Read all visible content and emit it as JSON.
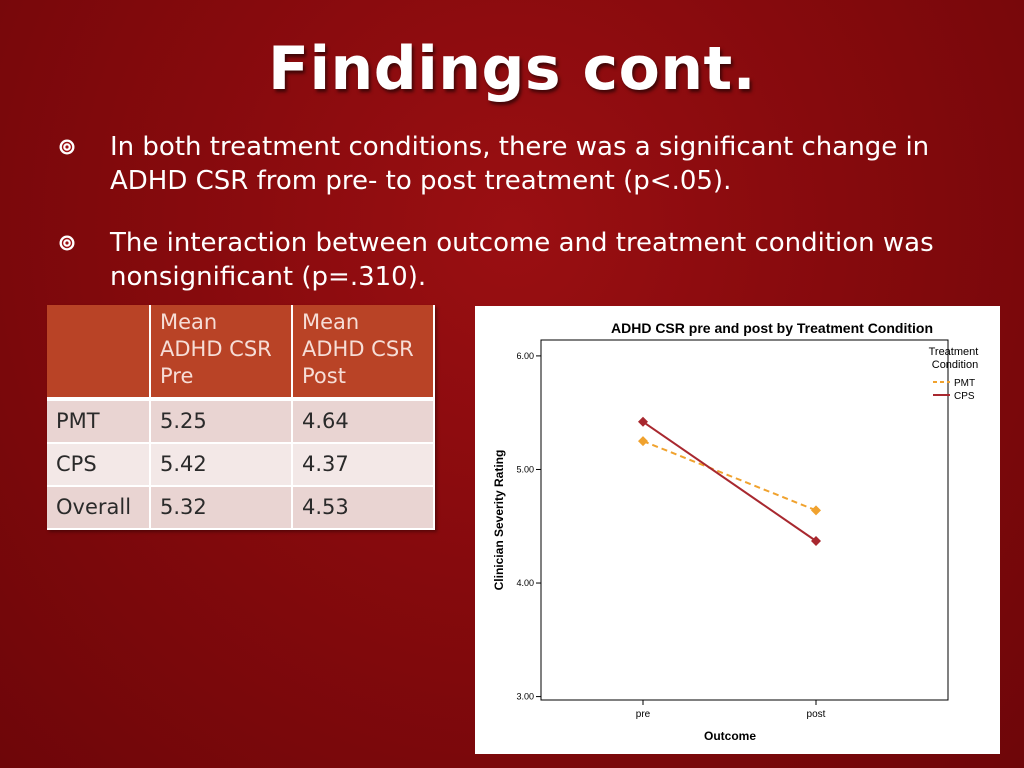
{
  "slide": {
    "title": "Findings cont.",
    "bullets": [
      "In both treatment conditions, there was a significant change in ADHD CSR from pre- to post treatment (p<.05).",
      "The interaction between outcome and treatment condition was nonsignificant (p=.310)."
    ]
  },
  "table": {
    "headers": [
      "",
      "Mean ADHD CSR Pre",
      "Mean ADHD CSR Post"
    ],
    "rows": [
      [
        "PMT",
        "5.25",
        "4.64"
      ],
      [
        "CPS",
        "5.42",
        "4.37"
      ],
      [
        "Overall",
        "5.32",
        "4.53"
      ]
    ]
  },
  "colors": {
    "background": "#860a0d",
    "header_fill": "#b94326",
    "pmt_line": "#f0a22e",
    "cps_line": "#a8282f"
  },
  "chart_data": {
    "type": "line",
    "title": "ADHD CSR pre and post by Treatment Condition",
    "xlabel": "Outcome",
    "ylabel": "Clinician Severity Rating",
    "categories": [
      "pre",
      "post"
    ],
    "ylim": [
      2.97,
      6.14
    ],
    "yticks": [
      3.0,
      4.0,
      5.0,
      6.0
    ],
    "ytick_labels": [
      "3.00",
      "4.00",
      "5.00",
      "6.00"
    ],
    "legend_title": "Treatment Condition",
    "legend_position": "top-right",
    "series": [
      {
        "name": "PMT",
        "values": [
          5.25,
          4.64
        ],
        "style": "dashed",
        "color": "#f0a22e"
      },
      {
        "name": "CPS",
        "values": [
          5.42,
          4.37
        ],
        "style": "solid",
        "color": "#a8282f"
      }
    ]
  }
}
